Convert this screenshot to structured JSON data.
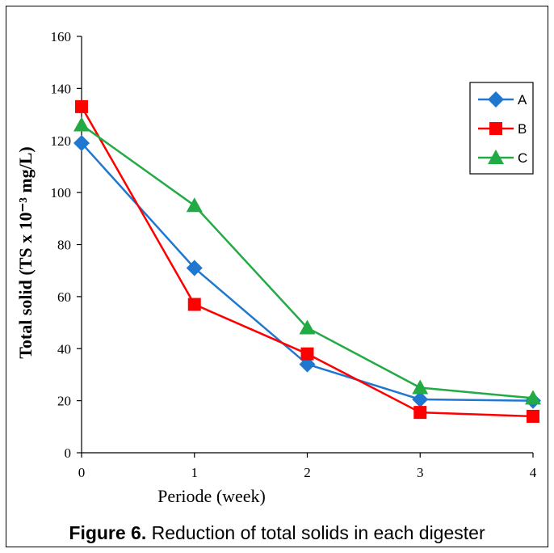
{
  "caption": {
    "label": "Figure 6.",
    "text": " Reduction of total solids in each digester"
  },
  "chart_data": {
    "type": "line",
    "xlabel": "Periode (week)",
    "ylabel": "Total solid (TS x 10⁻³ mg/L)",
    "x": [
      0,
      1,
      2,
      3,
      4
    ],
    "xlim": [
      0,
      4
    ],
    "ylim": [
      0,
      160
    ],
    "yticks": [
      0,
      20,
      40,
      60,
      80,
      100,
      120,
      140,
      160
    ],
    "xticks": [
      0,
      1,
      2,
      3,
      4
    ],
    "grid": false,
    "legend": "top-right",
    "series": [
      {
        "name": "A",
        "color": "#1f77d0",
        "marker": "diamond",
        "values": [
          119,
          71,
          34,
          20.5,
          20
        ]
      },
      {
        "name": "B",
        "color": "#ff0000",
        "marker": "square",
        "values": [
          133,
          57,
          38,
          15.5,
          14
        ]
      },
      {
        "name": "C",
        "color": "#22aa44",
        "marker": "triangle",
        "values": [
          126,
          95,
          48,
          25,
          21
        ]
      }
    ]
  }
}
